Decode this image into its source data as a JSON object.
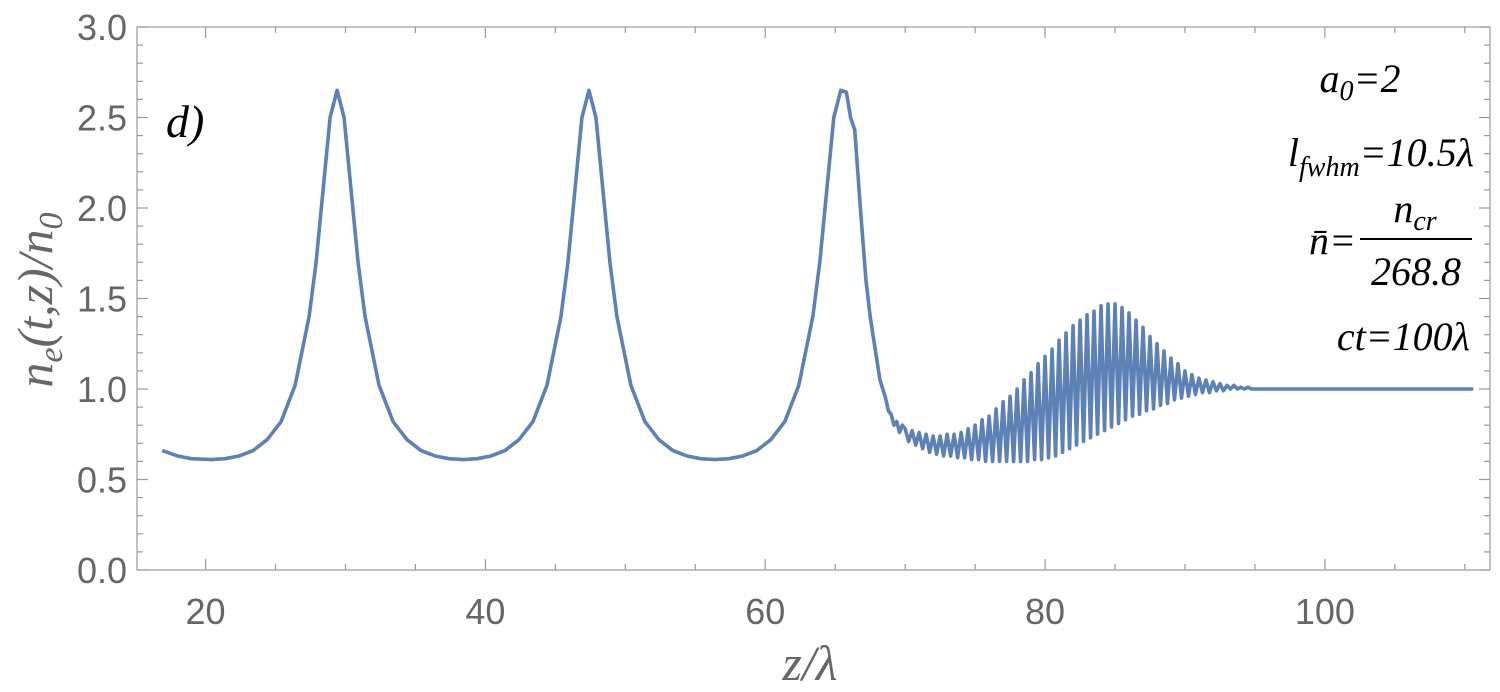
{
  "chart_data": {
    "type": "line",
    "panel_label": "d)",
    "x_label": "z/λ",
    "y_label_parts": [
      "n",
      "e",
      "(t,z)/n",
      "0"
    ],
    "annotations": {
      "a0": {
        "text": "a",
        "sub": "0",
        "tail": "=2"
      },
      "lfwhm": {
        "text": "l",
        "sub": "fwhm",
        "tail": "=10.5λ"
      },
      "nbar": {
        "text": "n̄=",
        "numerator": "n",
        "numerator_sub": "cr",
        "denominator": "268.8"
      },
      "ct": {
        "text": "ct=100λ"
      }
    },
    "xlim": [
      15.1,
      111.8
    ],
    "ylim": [
      0,
      3
    ],
    "xticks": [
      20,
      40,
      60,
      80,
      100
    ],
    "yticks": [
      {
        "value": 0,
        "label": "0.0"
      },
      0.5,
      {
        "value": 1,
        "label": "1.0"
      },
      1.5,
      {
        "value": 2,
        "label": "2.0"
      },
      2.5,
      {
        "value": 3,
        "label": "3.0"
      }
    ],
    "xminor": [
      25,
      30,
      35,
      45,
      50,
      55,
      65,
      70,
      75,
      85,
      90,
      95,
      105,
      110
    ],
    "yminor": [
      0.1,
      0.2,
      0.3,
      0.4,
      0.6,
      0.7,
      0.8,
      0.9,
      1.1,
      1.2,
      1.3,
      1.4,
      1.6,
      1.7,
      1.8,
      1.9,
      2.1,
      2.2,
      2.3,
      2.4,
      2.6,
      2.7,
      2.8,
      2.9
    ],
    "color": "#5e81b5",
    "x": [
      16.9,
      18,
      19,
      20.4,
      21.4,
      22.4,
      23.4,
      24.4,
      25.4,
      26.4,
      27.4,
      27.9,
      28.4,
      28.9,
      29.4,
      29.9,
      30.4,
      30.9,
      31.4,
      32.4,
      33.4,
      34.4,
      35.4,
      36.4,
      37.4,
      38.4,
      39.4,
      40.4,
      41.4,
      42.4,
      43.4,
      44.4,
      45.4,
      45.9,
      46.4,
      46.9,
      47.4,
      47.9,
      48.4,
      48.9,
      49.4,
      50.4,
      51.4,
      52.4,
      53.4,
      54.4,
      55.4,
      56.4,
      57.4,
      58.4,
      59.4,
      60.4,
      61.4,
      62.4,
      63.4,
      63.9,
      64.4,
      64.9,
      65.4,
      65.8,
      66.1,
      66.4,
      66.8,
      67.2,
      67.5,
      67.9,
      68.2,
      68.4,
      68.6,
      68.8,
      69.0,
      69.2,
      69.4,
      69.6,
      69.8,
      70,
      70.25,
      70.5,
      70.75,
      71,
      71.25,
      71.5,
      71.75,
      72,
      72.25,
      72.5,
      72.75,
      73,
      73.25,
      73.5,
      73.75,
      74,
      74.25,
      74.5,
      74.75,
      75,
      75.25,
      75.5,
      75.75,
      76,
      76.25,
      76.5,
      76.75,
      77,
      77.25,
      77.5,
      77.75,
      78,
      78.25,
      78.5,
      78.75,
      79,
      79.25,
      79.5,
      79.75,
      80,
      80.25,
      80.5,
      80.75,
      81,
      81.25,
      81.5,
      81.75,
      82,
      82.25,
      82.5,
      82.75,
      83,
      83.25,
      83.5,
      83.75,
      84,
      84.25,
      84.5,
      84.75,
      85,
      85.25,
      85.5,
      85.75,
      86,
      86.25,
      86.5,
      86.75,
      87,
      87.25,
      87.5,
      87.75,
      88,
      88.25,
      88.5,
      88.75,
      89,
      89.25,
      89.5,
      89.75,
      90,
      90.25,
      90.5,
      90.75,
      91,
      91.25,
      91.5,
      91.75,
      92,
      92.25,
      92.5,
      92.75,
      93,
      93.25,
      93.5,
      93.75,
      94,
      94.25,
      94.5,
      94.75,
      95,
      96,
      100,
      105,
      110.6
    ],
    "values": [
      0.66,
      0.63,
      0.615,
      0.61,
      0.615,
      0.63,
      0.66,
      0.72,
      0.82,
      1.02,
      1.4,
      1.7,
      2.1,
      2.5,
      2.65,
      2.5,
      2.1,
      1.7,
      1.4,
      1.02,
      0.82,
      0.72,
      0.66,
      0.63,
      0.615,
      0.61,
      0.615,
      0.63,
      0.66,
      0.72,
      0.82,
      1.02,
      1.4,
      1.7,
      2.1,
      2.5,
      2.65,
      2.5,
      2.1,
      1.7,
      1.4,
      1.02,
      0.82,
      0.72,
      0.66,
      0.63,
      0.615,
      0.61,
      0.615,
      0.63,
      0.66,
      0.72,
      0.82,
      1.02,
      1.4,
      1.7,
      2.1,
      2.5,
      2.65,
      2.64,
      2.5,
      2.43,
      2.0,
      1.6,
      1.4,
      1.2,
      1.05,
      1.0,
      0.95,
      0.88,
      0.86,
      0.8,
      0.82,
      0.76,
      0.8,
      0.78,
      0.71,
      0.77,
      0.69,
      0.76,
      0.67,
      0.75,
      0.65,
      0.74,
      0.64,
      0.74,
      0.63,
      0.75,
      0.63,
      0.75,
      0.62,
      0.76,
      0.62,
      0.78,
      0.61,
      0.8,
      0.61,
      0.83,
      0.6,
      0.85,
      0.6,
      0.89,
      0.6,
      0.93,
      0.6,
      0.96,
      0.6,
      1.0,
      0.6,
      1.05,
      0.6,
      1.09,
      0.61,
      1.14,
      0.61,
      1.18,
      0.62,
      1.22,
      0.63,
      1.27,
      0.65,
      1.31,
      0.67,
      1.35,
      0.69,
      1.38,
      0.71,
      1.41,
      0.73,
      1.43,
      0.75,
      1.46,
      0.77,
      1.47,
      0.79,
      1.47,
      0.81,
      1.45,
      0.83,
      1.42,
      0.85,
      1.38,
      0.86,
      1.34,
      0.88,
      1.29,
      0.89,
      1.25,
      0.91,
      1.21,
      0.92,
      1.17,
      0.94,
      1.14,
      0.95,
      1.1,
      0.96,
      1.08,
      0.97,
      1.06,
      0.98,
      1.05,
      0.98,
      1.04,
      0.99,
      1.03,
      0.99,
      1.02,
      1.0,
      1.02,
      1.0,
      1.01,
      1.0,
      1.01,
      1.0,
      1.0,
      1.0,
      1.0,
      1.0,
      1.0
    ]
  }
}
